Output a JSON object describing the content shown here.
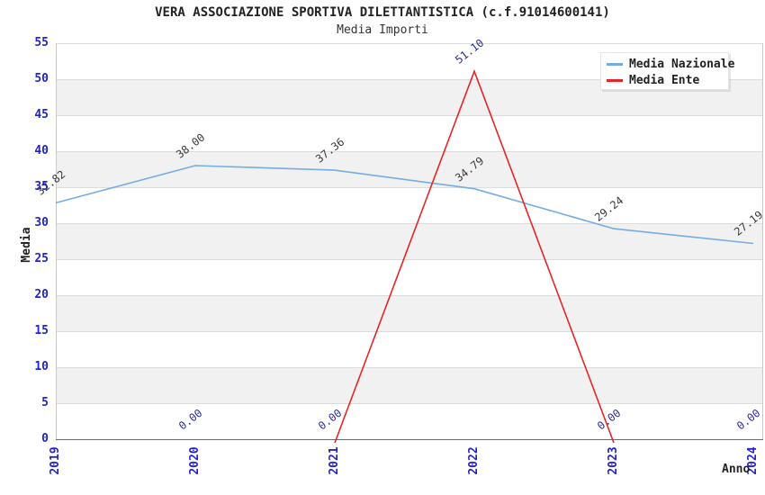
{
  "title": "VERA ASSOCIAZIONE SPORTIVA DILETTANTISTICA (c.f.91014600141)",
  "subtitle": "Media Importi",
  "chart_data": {
    "type": "line",
    "title": "VERA ASSOCIAZIONE SPORTIVA DILETTANTISTICA (c.f.91014600141)",
    "subtitle": "Media Importi",
    "x": [
      "2019",
      "2020",
      "2021",
      "2022",
      "2023",
      "2024"
    ],
    "xlabel": "Anno",
    "ylabel": "Media",
    "ylim": [
      0,
      55
    ],
    "yticks": [
      0,
      5,
      10,
      15,
      20,
      25,
      30,
      35,
      40,
      45,
      50,
      55
    ],
    "grid": "horizontal-bands",
    "legend_position": "top-right",
    "series": [
      {
        "name": "Media Nazionale",
        "color": "#74ace4",
        "values": [
          32.82,
          38.0,
          37.36,
          34.79,
          29.24,
          27.19
        ],
        "point_labels": [
          "32.82",
          "38.00",
          "37.36",
          "34.79",
          "29.24",
          "27.19"
        ],
        "label_color": "#3a3a3a",
        "skip_zero_segments": false
      },
      {
        "name": "Media Ente",
        "color": "#e82323",
        "values": [
          null,
          0.0,
          0.0,
          51.1,
          0.0,
          0.0
        ],
        "point_labels": [
          null,
          "0.00",
          "0.00",
          "51.10",
          "0.00",
          "0.00"
        ],
        "label_color": "#2b2b9a",
        "skip_zero_segments": true
      }
    ]
  },
  "colors": {
    "tick_label_blue": "#2323cd",
    "band_gray": "#f1f1f1",
    "gridline": "#dcdcdc",
    "axis_dark": "#6b6b6b",
    "background": "#ffffff"
  }
}
